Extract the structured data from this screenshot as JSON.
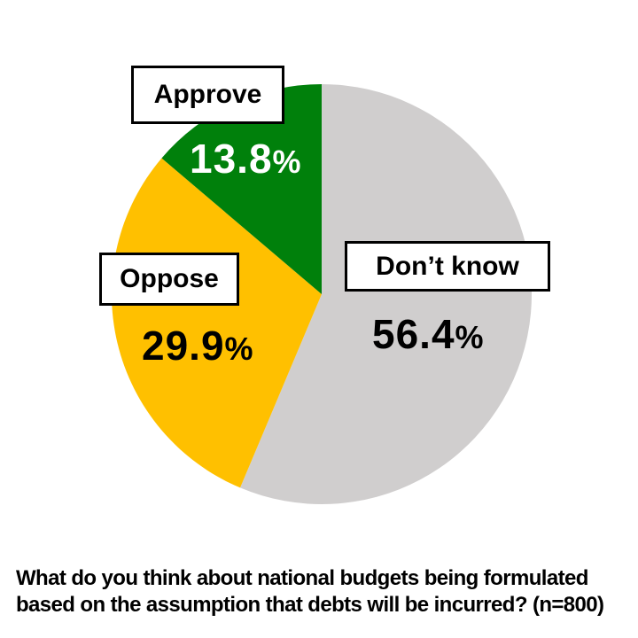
{
  "chart_data": {
    "type": "pie",
    "start_angle_deg": 0,
    "direction": "clockwise",
    "slices": [
      {
        "label": "Don’t know",
        "value": 56.4,
        "value_text": "56.4",
        "unit": "%",
        "color": "#D0CECE"
      },
      {
        "label": "Oppose",
        "value": 29.9,
        "value_text": "29.9",
        "unit": "%",
        "color": "#FFC000"
      },
      {
        "label": "Approve",
        "value": 13.8,
        "value_text": "13.8",
        "unit": "%",
        "color": "#00800B"
      }
    ],
    "question": "What do you think about national budgets being formulated based on the assumption that debts will be incurred? (n=800)"
  }
}
